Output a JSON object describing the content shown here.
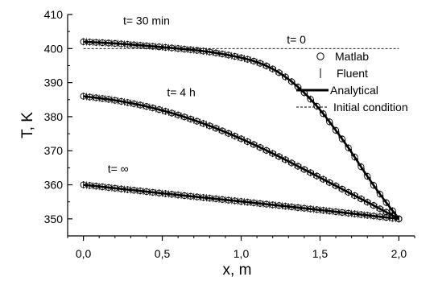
{
  "chart_data": {
    "type": "line",
    "xlabel": "x, m",
    "ylabel": "T, K",
    "xlim": [
      -0.1,
      2.1
    ],
    "ylim": [
      345,
      410
    ],
    "xticks": [
      0.0,
      0.5,
      1.0,
      1.5,
      2.0
    ],
    "xtick_labels": [
      "0,0",
      "0,5",
      "1,0",
      "1,5",
      "2,0"
    ],
    "yticks": [
      350,
      360,
      370,
      380,
      390,
      400,
      410
    ],
    "ytick_labels": [
      "350",
      "360",
      "370",
      "380",
      "390",
      "400",
      "410"
    ],
    "annotations": [
      {
        "text": "t= 30 min",
        "x": 0.4,
        "y": 407
      },
      {
        "text": "t= 0",
        "x": 1.35,
        "y": 401.5
      },
      {
        "text": "t= 4 h",
        "x": 0.62,
        "y": 386
      },
      {
        "text": "t= ∞",
        "x": 0.22,
        "y": 363.5
      }
    ],
    "legend": {
      "position": "right",
      "entries": [
        {
          "label": "Matlab",
          "marker": "circle"
        },
        {
          "label": "Fluent",
          "marker": "vline"
        },
        {
          "label": "Analytical",
          "marker": "thick-line"
        },
        {
          "label": "Initial condition",
          "marker": "dashed-line"
        }
      ]
    },
    "initial_condition": {
      "x": [
        0.0,
        2.0
      ],
      "y": [
        400,
        400
      ]
    },
    "series": [
      {
        "x": [
          0.0,
          0.2,
          0.4,
          0.6,
          0.8,
          1.0,
          1.1,
          1.2,
          1.3,
          1.4,
          1.5,
          1.6,
          1.7,
          1.8,
          1.9,
          2.0
        ],
        "y": [
          402,
          401.5,
          400.8,
          400.0,
          399.0,
          397.3,
          396.0,
          394.0,
          391.0,
          387.0,
          382.0,
          376.0,
          369.5,
          362.5,
          356.0,
          350
        ]
      },
      {
        "x": [
          0.0,
          0.2,
          0.4,
          0.6,
          0.8,
          1.0,
          1.2,
          1.4,
          1.6,
          1.8,
          2.0
        ],
        "y": [
          386,
          384.8,
          383.0,
          380.5,
          377.3,
          373.5,
          369.2,
          364.5,
          359.7,
          354.9,
          350
        ]
      },
      {
        "x": [
          0.0,
          0.5,
          1.0,
          1.5,
          2.0
        ],
        "y": [
          360,
          357.5,
          355.1,
          352.6,
          350
        ]
      }
    ]
  }
}
